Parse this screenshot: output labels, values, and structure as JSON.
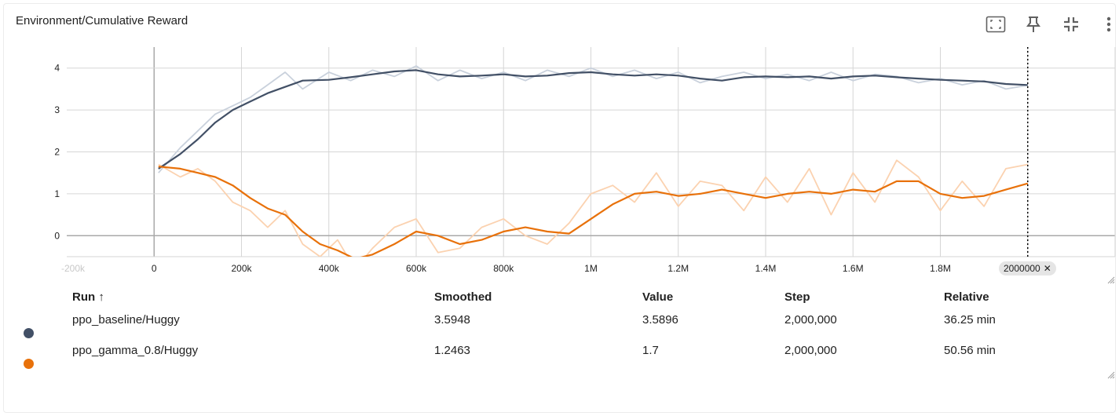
{
  "card": {
    "title": "Environment/Cumulative Reward"
  },
  "toolbar": {
    "icons": [
      "fit-domain-icon",
      "pin-icon",
      "collapse-icon",
      "more-vert-icon"
    ]
  },
  "colors": {
    "baseline": "#425066",
    "baseline_raw": "#c9d1dc",
    "gamma": "#e8710a",
    "gamma_raw": "#fbd2b0",
    "grid": "#d6d6d6",
    "axis": "#a9a9a9"
  },
  "chart_data": {
    "type": "line",
    "title": "Environment/Cumulative Reward",
    "xlabel": "",
    "ylabel": "",
    "xlim": [
      -200000,
      2200000
    ],
    "ylim": [
      -0.5,
      4.5
    ],
    "x_ticks": [
      "-200k",
      "0",
      "200k",
      "400k",
      "600k",
      "800k",
      "1M",
      "1.2M",
      "1.4M",
      "1.6M",
      "1.8M",
      "2M"
    ],
    "x_tick_values": [
      -200000,
      0,
      200000,
      400000,
      600000,
      800000,
      1000000,
      1200000,
      1400000,
      1600000,
      1800000,
      2000000
    ],
    "y_ticks": [
      "0",
      "1",
      "2",
      "3",
      "4"
    ],
    "y_tick_values": [
      0,
      1,
      2,
      3,
      4
    ],
    "grid": true,
    "hover_step": 2000000,
    "hover_step_label": "2000000",
    "series": [
      {
        "name": "ppo_baseline/Huggy",
        "x": [
          10000,
          60000,
          100000,
          140000,
          180000,
          220000,
          260000,
          300000,
          340000,
          400000,
          450000,
          500000,
          550000,
          600000,
          650000,
          700000,
          750000,
          800000,
          850000,
          900000,
          950000,
          1000000,
          1050000,
          1100000,
          1150000,
          1200000,
          1250000,
          1300000,
          1350000,
          1400000,
          1450000,
          1500000,
          1550000,
          1600000,
          1650000,
          1700000,
          1750000,
          1800000,
          1850000,
          1900000,
          1950000,
          2000000
        ],
        "smoothed": [
          1.6,
          1.95,
          2.3,
          2.7,
          3.0,
          3.2,
          3.4,
          3.55,
          3.7,
          3.72,
          3.78,
          3.85,
          3.92,
          3.95,
          3.85,
          3.8,
          3.82,
          3.85,
          3.8,
          3.82,
          3.88,
          3.9,
          3.85,
          3.82,
          3.85,
          3.82,
          3.75,
          3.7,
          3.78,
          3.8,
          3.78,
          3.8,
          3.75,
          3.8,
          3.82,
          3.78,
          3.75,
          3.72,
          3.7,
          3.68,
          3.62,
          3.5948
        ],
        "raw": [
          1.5,
          2.1,
          2.5,
          2.9,
          3.1,
          3.3,
          3.6,
          3.9,
          3.5,
          3.9,
          3.7,
          3.95,
          3.8,
          4.05,
          3.7,
          3.95,
          3.75,
          3.9,
          3.7,
          3.95,
          3.8,
          4.0,
          3.8,
          3.95,
          3.75,
          3.9,
          3.65,
          3.8,
          3.9,
          3.75,
          3.85,
          3.7,
          3.9,
          3.7,
          3.85,
          3.8,
          3.65,
          3.75,
          3.6,
          3.7,
          3.5,
          3.5896
        ]
      },
      {
        "name": "ppo_gamma_0.8/Huggy",
        "x": [
          10000,
          60000,
          100000,
          140000,
          180000,
          220000,
          260000,
          300000,
          340000,
          380000,
          420000,
          460000,
          500000,
          550000,
          600000,
          650000,
          700000,
          750000,
          800000,
          850000,
          900000,
          950000,
          1000000,
          1050000,
          1100000,
          1150000,
          1200000,
          1250000,
          1300000,
          1350000,
          1400000,
          1450000,
          1500000,
          1550000,
          1600000,
          1650000,
          1700000,
          1750000,
          1800000,
          1850000,
          1900000,
          1950000,
          2000000
        ],
        "smoothed": [
          1.65,
          1.6,
          1.5,
          1.4,
          1.2,
          0.9,
          0.65,
          0.5,
          0.1,
          -0.2,
          -0.35,
          -0.55,
          -0.45,
          -0.2,
          0.1,
          0.0,
          -0.2,
          -0.1,
          0.1,
          0.2,
          0.1,
          0.05,
          0.4,
          0.75,
          1.0,
          1.05,
          0.95,
          1.0,
          1.1,
          1.0,
          0.9,
          1.0,
          1.05,
          1.0,
          1.1,
          1.05,
          1.3,
          1.3,
          1.0,
          0.9,
          0.95,
          1.1,
          1.2463
        ],
        "raw": [
          1.7,
          1.4,
          1.6,
          1.3,
          0.8,
          0.6,
          0.2,
          0.6,
          -0.2,
          -0.5,
          -0.1,
          -0.8,
          -0.3,
          0.2,
          0.4,
          -0.4,
          -0.3,
          0.2,
          0.4,
          0.0,
          -0.2,
          0.3,
          1.0,
          1.2,
          0.8,
          1.5,
          0.7,
          1.3,
          1.2,
          0.6,
          1.4,
          0.8,
          1.6,
          0.5,
          1.5,
          0.8,
          1.8,
          1.4,
          0.6,
          1.3,
          0.7,
          1.6,
          1.7
        ]
      }
    ]
  },
  "table": {
    "headers": {
      "run": "Run ↑",
      "smoothed": "Smoothed",
      "value": "Value",
      "step": "Step",
      "relative": "Relative"
    },
    "rows": [
      {
        "run": "ppo_baseline/Huggy",
        "smoothed": "3.5948",
        "value": "3.5896",
        "step": "2,000,000",
        "relative": "36.25 min"
      },
      {
        "run": "ppo_gamma_0.8/Huggy",
        "smoothed": "1.2463",
        "value": "1.7",
        "step": "2,000,000",
        "relative": "50.56 min"
      }
    ]
  }
}
